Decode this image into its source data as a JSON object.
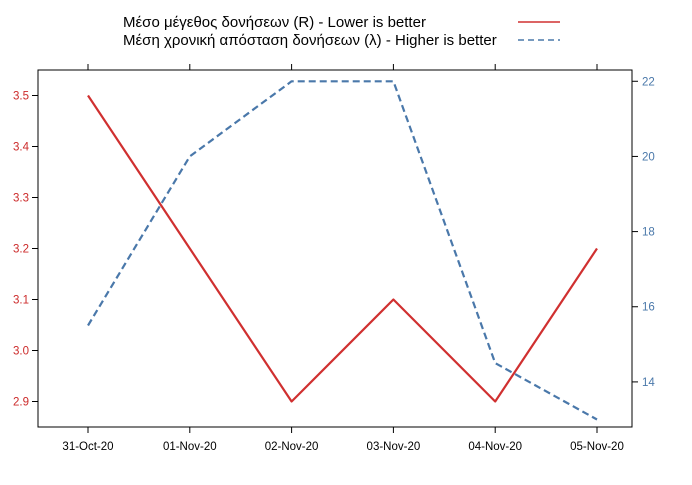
{
  "chart_data": {
    "type": "line",
    "categories": [
      "31-Oct-20",
      "01-Nov-20",
      "02-Nov-20",
      "03-Nov-20",
      "04-Nov-20",
      "05-Nov-20"
    ],
    "series": [
      {
        "name": "Μέσο μέγεθος δονήσεων (R) - Lower is better",
        "axis": "left",
        "color": "#d03030",
        "style": "solid",
        "values": [
          3.5,
          3.2,
          2.9,
          3.1,
          2.9,
          3.2
        ]
      },
      {
        "name": "Μέση χρονική απόσταση δονήσεων (λ) - Higher is better",
        "axis": "right",
        "color": "#4a78aa",
        "style": "dashed",
        "values": [
          15.5,
          20.0,
          22.0,
          22.0,
          14.5,
          13.0
        ]
      }
    ],
    "y_left": {
      "lim": [
        2.85,
        3.55
      ],
      "ticks": [
        "2.9",
        "3.0",
        "3.1",
        "3.2",
        "3.3",
        "3.4",
        "3.5"
      ],
      "color": "#cc2a2a"
    },
    "y_right": {
      "lim": [
        12.8,
        22.3
      ],
      "ticks": [
        "14",
        "16",
        "18",
        "20",
        "22"
      ],
      "color": "#4a78aa"
    },
    "title": "",
    "xlabel": "",
    "grid": false,
    "legend": "top"
  }
}
